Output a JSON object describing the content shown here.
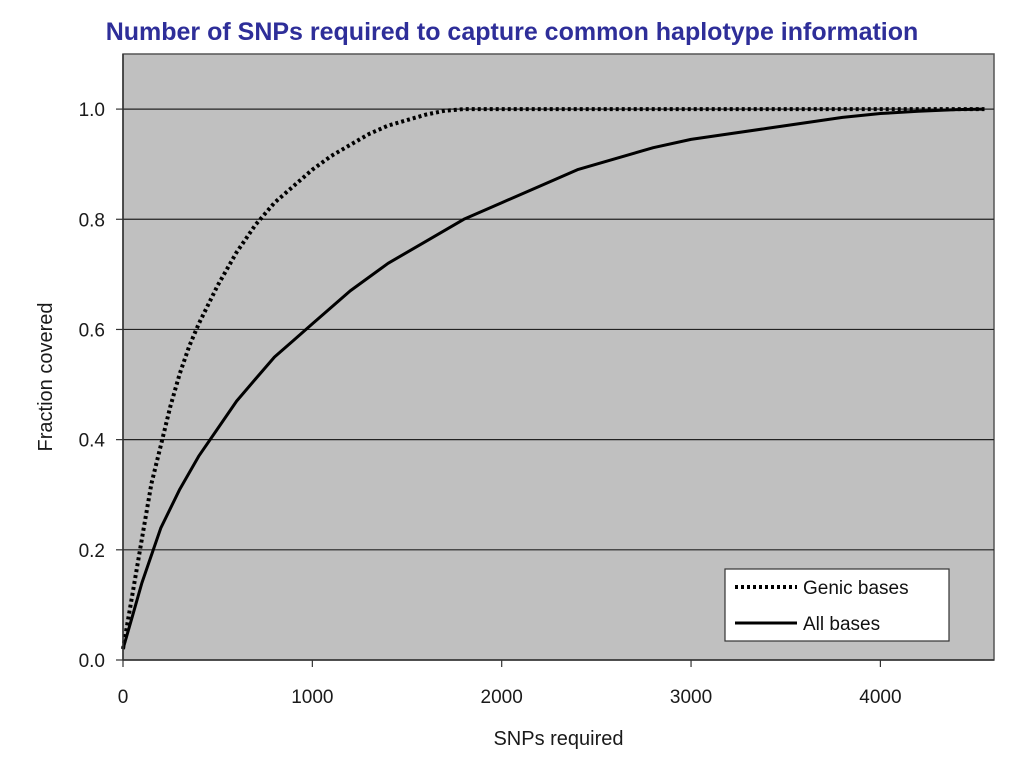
{
  "chart_data": {
    "type": "line",
    "title": "Number of SNPs required to capture common haplotype information",
    "xlabel": "SNPs required",
    "ylabel": "Fraction covered",
    "xlim": [
      0,
      4600
    ],
    "ylim": [
      0,
      1.1
    ],
    "x_ticks": [
      0,
      1000,
      2000,
      3000,
      4000
    ],
    "x_tick_labels": [
      "0",
      "1000",
      "2000",
      "3000",
      "4000"
    ],
    "y_ticks": [
      0,
      0.2,
      0.4,
      0.6,
      0.8,
      1.0
    ],
    "y_tick_labels": [
      "0.0",
      "0.2",
      "0.4",
      "0.6",
      "0.8",
      "1.0"
    ],
    "grid": "horizontal",
    "legend_position": "bottom-right",
    "colors": {
      "plot_background": "#c0c0c0",
      "line": "#000000",
      "title": "#2e2e99",
      "gridline": "#222222"
    },
    "series": [
      {
        "name": "Genic bases",
        "style": "dotted",
        "x": [
          0,
          50,
          100,
          150,
          200,
          250,
          300,
          350,
          400,
          500,
          600,
          700,
          800,
          900,
          1000,
          1100,
          1200,
          1300,
          1400,
          1500,
          1600,
          1700,
          1800,
          2000,
          2500,
          3000,
          3500,
          4000,
          4550
        ],
        "y": [
          0.02,
          0.12,
          0.22,
          0.32,
          0.39,
          0.46,
          0.52,
          0.57,
          0.61,
          0.68,
          0.74,
          0.79,
          0.83,
          0.86,
          0.89,
          0.915,
          0.935,
          0.955,
          0.97,
          0.98,
          0.99,
          0.997,
          1.0,
          1.0,
          1.0,
          1.0,
          1.0,
          1.0,
          1.0
        ]
      },
      {
        "name": "All bases",
        "style": "solid",
        "x": [
          0,
          50,
          100,
          150,
          200,
          300,
          400,
          500,
          600,
          700,
          800,
          900,
          1000,
          1200,
          1400,
          1600,
          1800,
          2000,
          2200,
          2400,
          2600,
          2800,
          3000,
          3200,
          3400,
          3600,
          3800,
          4000,
          4200,
          4400,
          4550
        ],
        "y": [
          0.02,
          0.08,
          0.14,
          0.19,
          0.24,
          0.31,
          0.37,
          0.42,
          0.47,
          0.51,
          0.55,
          0.58,
          0.61,
          0.67,
          0.72,
          0.76,
          0.8,
          0.83,
          0.86,
          0.89,
          0.91,
          0.93,
          0.945,
          0.955,
          0.965,
          0.975,
          0.985,
          0.992,
          0.996,
          0.999,
          1.0
        ]
      }
    ]
  }
}
